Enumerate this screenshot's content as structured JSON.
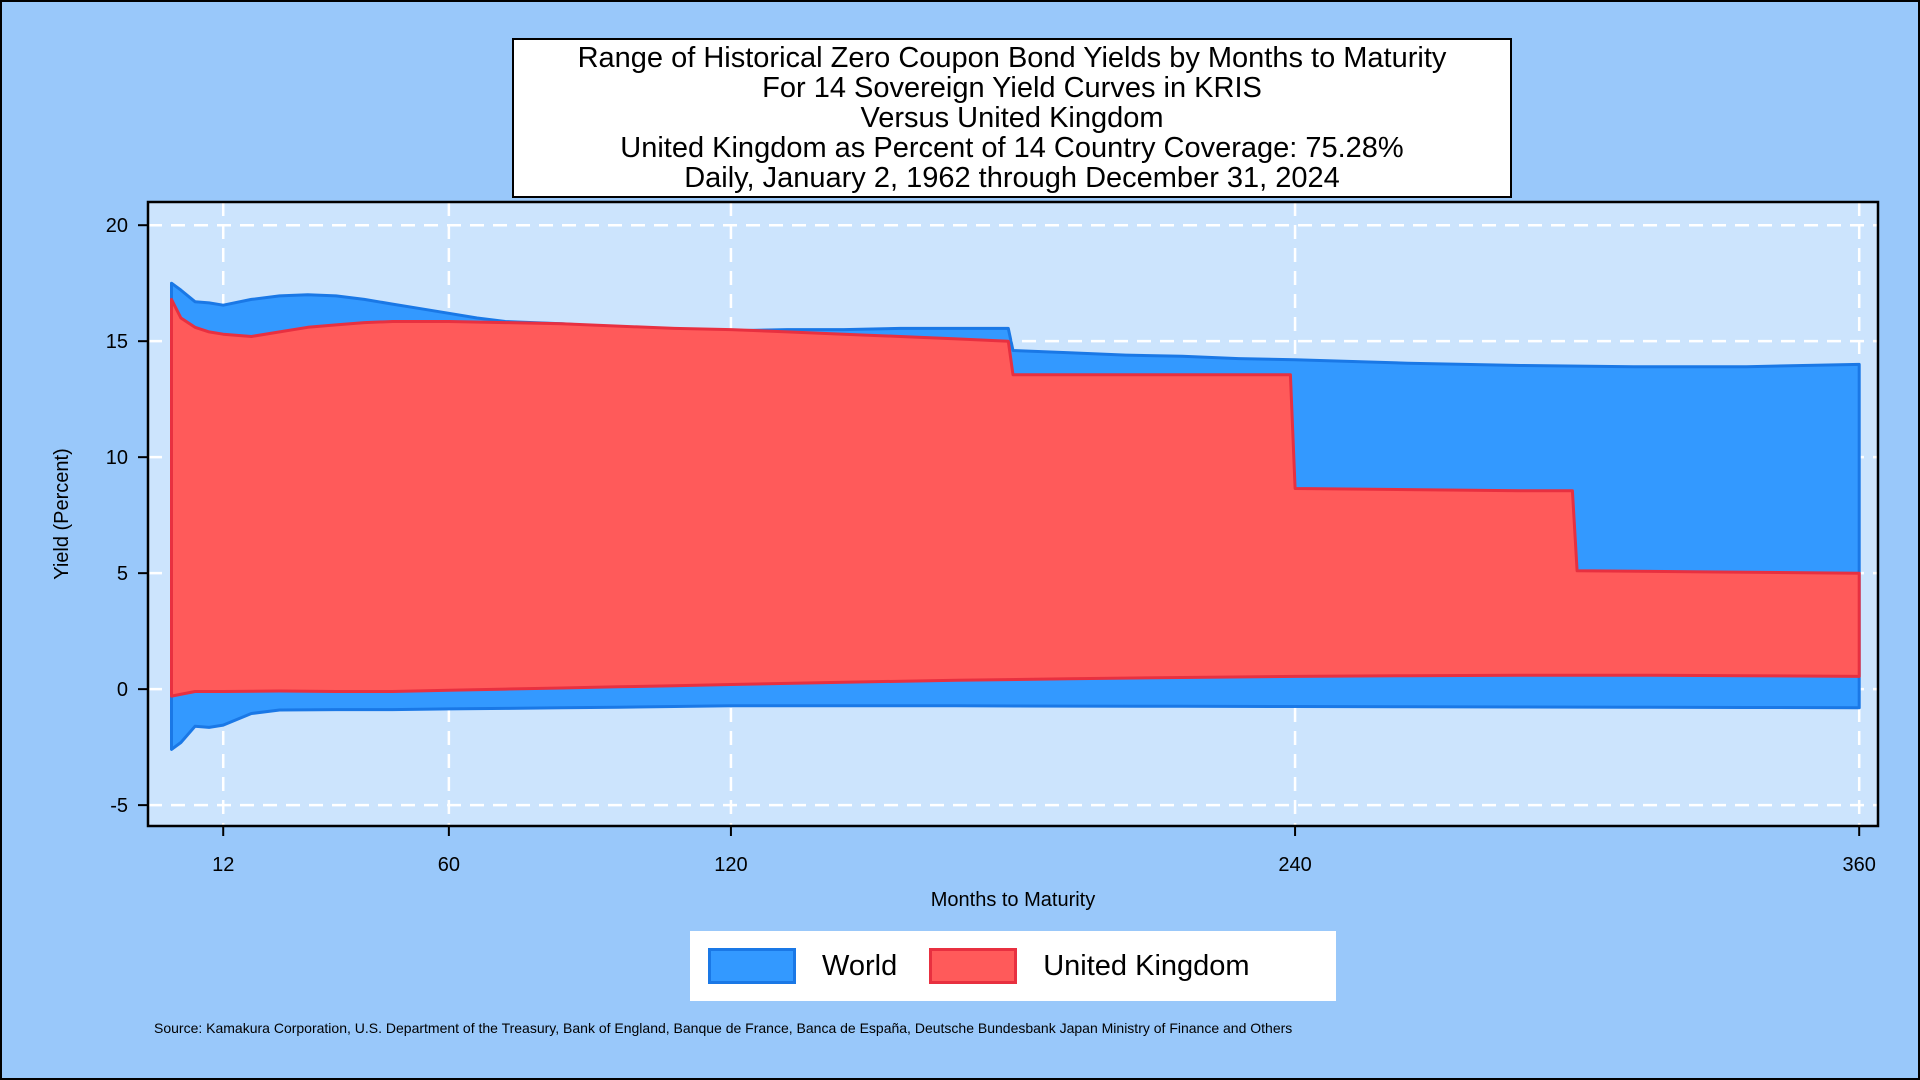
{
  "chart_data": {
    "type": "area",
    "title_lines": [
      "Range of Historical Zero Coupon Bond Yields by Months to Maturity",
      "For 14 Sovereign Yield Curves in KRIS",
      "Versus United Kingdom",
      "United Kingdom as Percent of 14 Country Coverage: 75.28%",
      "Daily, January 2, 1962 through December 31, 2024"
    ],
    "xlabel": "Months to Maturity",
    "ylabel": "Yield (Percent)",
    "xlim": [
      -4,
      364
    ],
    "ylim": [
      -5.9,
      21
    ],
    "x_ticks": [
      12,
      60,
      120,
      240,
      360
    ],
    "y_ticks": [
      -5,
      0,
      5,
      10,
      15,
      20
    ],
    "grid": true,
    "legend_position": "bottom-center",
    "source": "Source: Kamakura Corporation, U.S. Department of the Treasury, Bank of England, Banque de France, Banca de España, Deutsche Bundesbank Japan Ministry of Finance and Others",
    "series": [
      {
        "name": "World",
        "color": "#3399ff",
        "stroke": "#1a78e6",
        "upper": [
          [
            1,
            17.5
          ],
          [
            3,
            17.2
          ],
          [
            6,
            16.7
          ],
          [
            9,
            16.65
          ],
          [
            12,
            16.55
          ],
          [
            18,
            16.8
          ],
          [
            24,
            16.95
          ],
          [
            30,
            17.0
          ],
          [
            36,
            16.95
          ],
          [
            42,
            16.8
          ],
          [
            48,
            16.6
          ],
          [
            54,
            16.4
          ],
          [
            60,
            16.2
          ],
          [
            66,
            16.0
          ],
          [
            72,
            15.85
          ],
          [
            84,
            15.75
          ],
          [
            96,
            15.6
          ],
          [
            108,
            15.5
          ],
          [
            120,
            15.45
          ],
          [
            132,
            15.5
          ],
          [
            144,
            15.5
          ],
          [
            156,
            15.55
          ],
          [
            168,
            15.55
          ],
          [
            179,
            15.55
          ],
          [
            180,
            14.6
          ],
          [
            192,
            14.5
          ],
          [
            204,
            14.4
          ],
          [
            216,
            14.35
          ],
          [
            228,
            14.25
          ],
          [
            240,
            14.2
          ],
          [
            264,
            14.05
          ],
          [
            288,
            13.95
          ],
          [
            312,
            13.9
          ],
          [
            336,
            13.9
          ],
          [
            360,
            14.0
          ]
        ],
        "lower": [
          [
            1,
            -2.6
          ],
          [
            3,
            -2.3
          ],
          [
            6,
            -1.6
          ],
          [
            9,
            -1.65
          ],
          [
            12,
            -1.55
          ],
          [
            18,
            -1.05
          ],
          [
            24,
            -0.9
          ],
          [
            36,
            -0.88
          ],
          [
            48,
            -0.88
          ],
          [
            60,
            -0.85
          ],
          [
            72,
            -0.83
          ],
          [
            84,
            -0.8
          ],
          [
            96,
            -0.78
          ],
          [
            108,
            -0.75
          ],
          [
            120,
            -0.72
          ],
          [
            144,
            -0.72
          ],
          [
            168,
            -0.72
          ],
          [
            192,
            -0.73
          ],
          [
            216,
            -0.74
          ],
          [
            240,
            -0.75
          ],
          [
            264,
            -0.76
          ],
          [
            288,
            -0.77
          ],
          [
            312,
            -0.78
          ],
          [
            336,
            -0.79
          ],
          [
            360,
            -0.8
          ]
        ]
      },
      {
        "name": "United Kingdom",
        "color": "#ff5a5a",
        "stroke": "#e83040",
        "upper": [
          [
            1,
            16.8
          ],
          [
            3,
            16.0
          ],
          [
            6,
            15.6
          ],
          [
            9,
            15.4
          ],
          [
            12,
            15.3
          ],
          [
            18,
            15.2
          ],
          [
            24,
            15.4
          ],
          [
            30,
            15.6
          ],
          [
            36,
            15.7
          ],
          [
            42,
            15.8
          ],
          [
            48,
            15.85
          ],
          [
            60,
            15.85
          ],
          [
            72,
            15.8
          ],
          [
            84,
            15.75
          ],
          [
            96,
            15.65
          ],
          [
            108,
            15.55
          ],
          [
            120,
            15.5
          ],
          [
            132,
            15.4
          ],
          [
            144,
            15.3
          ],
          [
            156,
            15.2
          ],
          [
            168,
            15.1
          ],
          [
            179,
            15.0
          ],
          [
            180,
            13.55
          ],
          [
            192,
            13.55
          ],
          [
            216,
            13.55
          ],
          [
            239,
            13.55
          ],
          [
            240,
            8.65
          ],
          [
            264,
            8.6
          ],
          [
            288,
            8.55
          ],
          [
            299,
            8.55
          ],
          [
            300,
            5.1
          ],
          [
            330,
            5.05
          ],
          [
            360,
            5.0
          ]
        ],
        "lower": [
          [
            1,
            -0.3
          ],
          [
            6,
            -0.1
          ],
          [
            12,
            -0.1
          ],
          [
            24,
            -0.08
          ],
          [
            36,
            -0.1
          ],
          [
            48,
            -0.1
          ],
          [
            60,
            -0.05
          ],
          [
            72,
            0.0
          ],
          [
            84,
            0.05
          ],
          [
            96,
            0.1
          ],
          [
            108,
            0.15
          ],
          [
            120,
            0.2
          ],
          [
            144,
            0.3
          ],
          [
            168,
            0.38
          ],
          [
            192,
            0.45
          ],
          [
            216,
            0.5
          ],
          [
            240,
            0.55
          ],
          [
            264,
            0.58
          ],
          [
            288,
            0.6
          ],
          [
            312,
            0.6
          ],
          [
            336,
            0.58
          ],
          [
            360,
            0.55
          ]
        ]
      }
    ]
  }
}
